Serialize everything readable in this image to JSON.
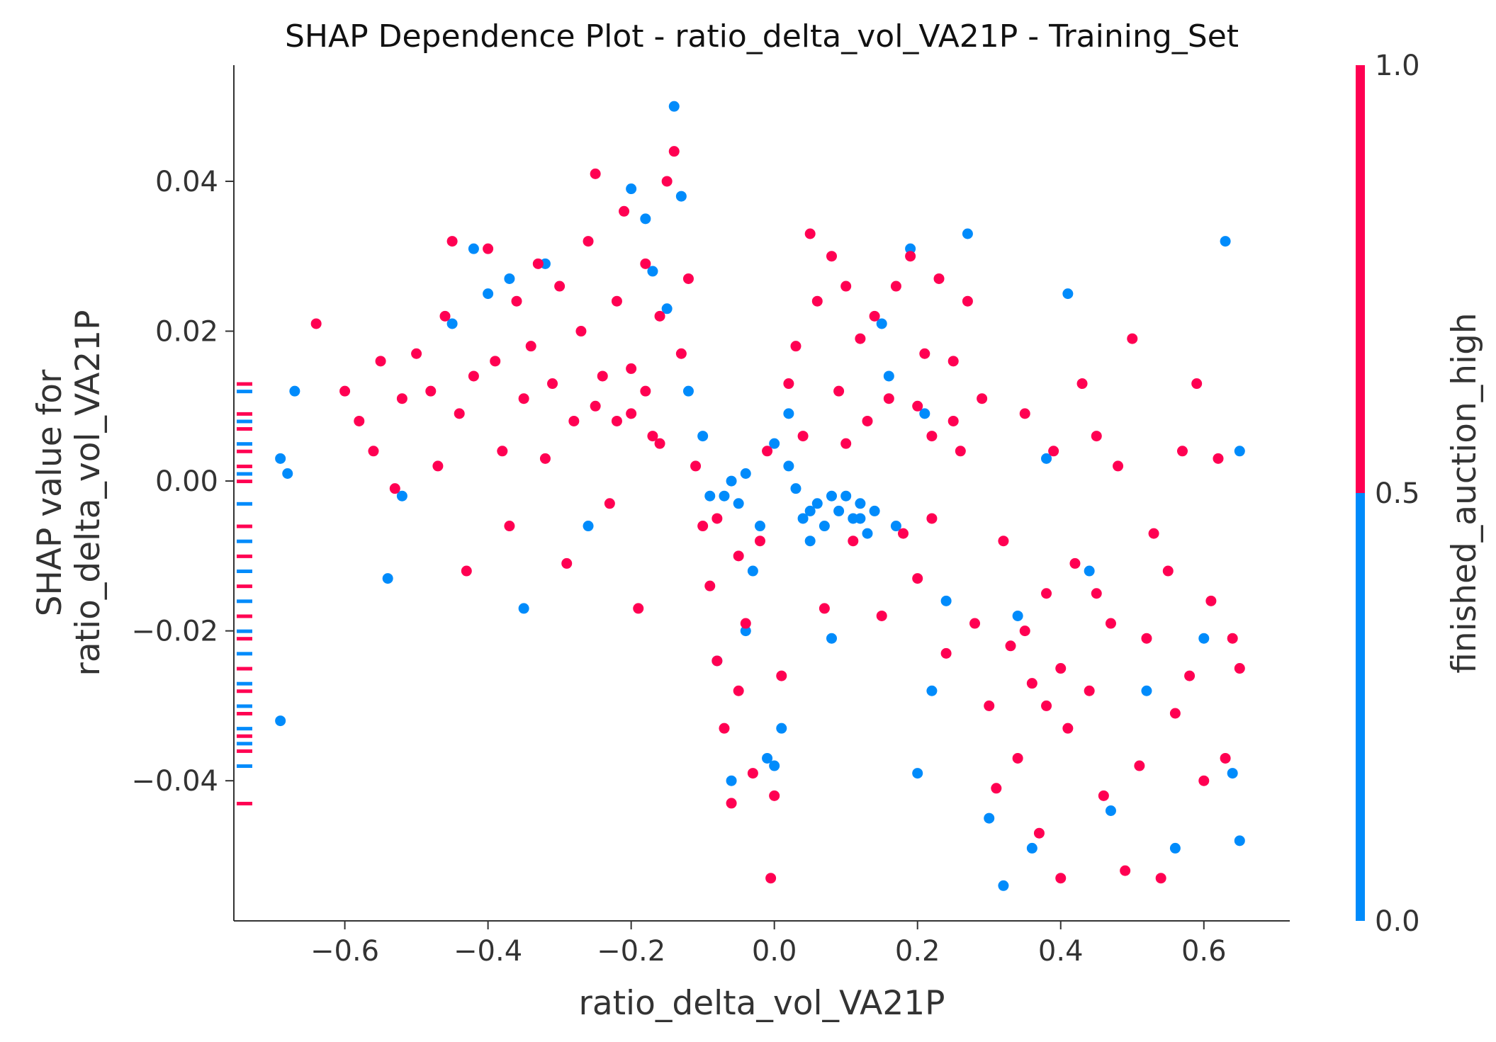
{
  "chart_data": {
    "type": "scatter",
    "title": "SHAP Dependence Plot - ratio_delta_vol_VA21P - Training_Set",
    "xlabel": "ratio_delta_vol_VA21P",
    "ylabel_lines": [
      "SHAP value for",
      "ratio_delta_vol_VA21P"
    ],
    "xlim": [
      -0.755,
      0.72
    ],
    "ylim": [
      -0.0587,
      0.0555
    ],
    "x_ticks": [
      {
        "value": -0.6,
        "label": "−0.6"
      },
      {
        "value": -0.4,
        "label": "−0.4"
      },
      {
        "value": -0.2,
        "label": "−0.2"
      },
      {
        "value": 0.0,
        "label": "0.0"
      },
      {
        "value": 0.2,
        "label": "0.2"
      },
      {
        "value": 0.4,
        "label": "0.4"
      },
      {
        "value": 0.6,
        "label": "0.6"
      }
    ],
    "y_ticks": [
      {
        "value": 0.04,
        "label": "0.04"
      },
      {
        "value": 0.02,
        "label": "0.02"
      },
      {
        "value": 0.0,
        "label": "0.00"
      },
      {
        "value": -0.02,
        "label": "−0.02"
      },
      {
        "value": -0.04,
        "label": "−0.04"
      }
    ],
    "grid": false,
    "colorbar": {
      "label": "finished_auction_high",
      "ticks": [
        {
          "value": 1.0,
          "label": "1.0"
        },
        {
          "value": 0.5,
          "label": "0.5"
        },
        {
          "value": 0.0,
          "label": "0.0"
        }
      ],
      "high_color": "#ff0052",
      "low_color": "#008bfb"
    },
    "series": [
      {
        "color_value": 1,
        "color": "#ff0052",
        "points": [
          [
            -0.64,
            0.021
          ],
          [
            -0.6,
            0.012
          ],
          [
            -0.58,
            0.008
          ],
          [
            -0.56,
            0.004
          ],
          [
            -0.55,
            0.016
          ],
          [
            -0.53,
            -0.001
          ],
          [
            -0.52,
            0.011
          ],
          [
            -0.5,
            0.017
          ],
          [
            -0.48,
            0.012
          ],
          [
            -0.47,
            0.002
          ],
          [
            -0.46,
            0.022
          ],
          [
            -0.45,
            0.032
          ],
          [
            -0.44,
            0.009
          ],
          [
            -0.43,
            -0.012
          ],
          [
            -0.42,
            0.014
          ],
          [
            -0.4,
            0.031
          ],
          [
            -0.39,
            0.016
          ],
          [
            -0.38,
            0.004
          ],
          [
            -0.37,
            -0.006
          ],
          [
            -0.36,
            0.024
          ],
          [
            -0.35,
            0.011
          ],
          [
            -0.34,
            0.018
          ],
          [
            -0.33,
            0.029
          ],
          [
            -0.32,
            0.003
          ],
          [
            -0.31,
            0.013
          ],
          [
            -0.3,
            0.026
          ],
          [
            -0.29,
            -0.011
          ],
          [
            -0.28,
            0.008
          ],
          [
            -0.27,
            0.02
          ],
          [
            -0.26,
            0.032
          ],
          [
            -0.25,
            0.041
          ],
          [
            -0.24,
            0.014
          ],
          [
            -0.23,
            -0.003
          ],
          [
            -0.22,
            0.024
          ],
          [
            -0.21,
            0.036
          ],
          [
            -0.2,
            0.009
          ],
          [
            -0.19,
            -0.017
          ],
          [
            -0.18,
            0.029
          ],
          [
            -0.17,
            0.006
          ],
          [
            -0.16,
            0.022
          ],
          [
            -0.15,
            0.04
          ],
          [
            -0.14,
            0.044
          ],
          [
            -0.13,
            0.017
          ],
          [
            -0.12,
            0.027
          ],
          [
            -0.11,
            0.002
          ],
          [
            -0.1,
            -0.006
          ],
          [
            -0.09,
            -0.014
          ],
          [
            -0.08,
            -0.024
          ],
          [
            -0.07,
            -0.033
          ],
          [
            -0.06,
            -0.043
          ],
          [
            -0.05,
            -0.028
          ],
          [
            -0.04,
            -0.019
          ],
          [
            -0.03,
            -0.039
          ],
          [
            -0.02,
            -0.008
          ],
          [
            -0.01,
            0.004
          ],
          [
            0.0,
            -0.042
          ],
          [
            0.01,
            -0.026
          ],
          [
            -0.005,
            -0.053
          ],
          [
            0.02,
            0.013
          ],
          [
            0.03,
            0.018
          ],
          [
            0.04,
            0.006
          ],
          [
            0.05,
            0.033
          ],
          [
            0.06,
            0.024
          ],
          [
            0.07,
            -0.017
          ],
          [
            0.08,
            0.03
          ],
          [
            0.09,
            0.012
          ],
          [
            0.1,
            0.026
          ],
          [
            0.11,
            -0.008
          ],
          [
            0.12,
            0.019
          ],
          [
            0.13,
            0.008
          ],
          [
            0.14,
            0.022
          ],
          [
            0.15,
            -0.018
          ],
          [
            0.16,
            0.011
          ],
          [
            0.17,
            0.026
          ],
          [
            0.18,
            -0.007
          ],
          [
            0.19,
            0.03
          ],
          [
            0.2,
            -0.013
          ],
          [
            0.21,
            0.017
          ],
          [
            0.22,
            0.006
          ],
          [
            0.23,
            0.027
          ],
          [
            0.24,
            -0.023
          ],
          [
            0.25,
            0.016
          ],
          [
            0.26,
            0.004
          ],
          [
            0.27,
            0.024
          ],
          [
            0.28,
            -0.019
          ],
          [
            0.29,
            0.011
          ],
          [
            0.3,
            -0.03
          ],
          [
            0.31,
            -0.041
          ],
          [
            0.32,
            -0.008
          ],
          [
            0.33,
            -0.022
          ],
          [
            0.34,
            -0.037
          ],
          [
            0.35,
            0.009
          ],
          [
            0.36,
            -0.027
          ],
          [
            0.37,
            -0.047
          ],
          [
            0.38,
            -0.015
          ],
          [
            0.39,
            0.004
          ],
          [
            0.4,
            -0.053
          ],
          [
            0.41,
            -0.033
          ],
          [
            0.42,
            -0.011
          ],
          [
            0.43,
            0.013
          ],
          [
            0.44,
            -0.028
          ],
          [
            0.45,
            0.006
          ],
          [
            0.46,
            -0.042
          ],
          [
            0.47,
            -0.019
          ],
          [
            0.48,
            0.002
          ],
          [
            0.49,
            -0.052
          ],
          [
            0.5,
            0.019
          ],
          [
            0.51,
            -0.038
          ],
          [
            0.52,
            -0.021
          ],
          [
            0.53,
            -0.007
          ],
          [
            0.54,
            -0.053
          ],
          [
            0.55,
            -0.012
          ],
          [
            0.56,
            -0.031
          ],
          [
            0.57,
            0.004
          ],
          [
            0.58,
            -0.026
          ],
          [
            0.59,
            0.013
          ],
          [
            0.6,
            -0.04
          ],
          [
            0.61,
            -0.016
          ],
          [
            0.62,
            0.003
          ],
          [
            0.63,
            -0.037
          ],
          [
            0.64,
            -0.021
          ],
          [
            0.65,
            -0.025
          ],
          [
            -0.2,
            0.015
          ],
          [
            -0.18,
            0.012
          ],
          [
            -0.22,
            0.008
          ],
          [
            -0.16,
            0.005
          ],
          [
            -0.25,
            0.01
          ],
          [
            0.1,
            0.005
          ],
          [
            0.2,
            0.01
          ],
          [
            0.25,
            0.008
          ],
          [
            0.22,
            -0.005
          ],
          [
            -0.05,
            -0.01
          ],
          [
            -0.08,
            -0.005
          ],
          [
            0.35,
            -0.02
          ],
          [
            0.4,
            -0.025
          ],
          [
            0.45,
            -0.015
          ],
          [
            0.38,
            -0.03
          ]
        ]
      },
      {
        "color_value": 0,
        "color": "#008bfb",
        "points": [
          [
            -0.69,
            0.003
          ],
          [
            -0.69,
            -0.032
          ],
          [
            -0.68,
            0.001
          ],
          [
            -0.67,
            0.012
          ],
          [
            -0.54,
            -0.013
          ],
          [
            -0.52,
            -0.002
          ],
          [
            -0.45,
            0.021
          ],
          [
            -0.42,
            0.031
          ],
          [
            -0.4,
            0.025
          ],
          [
            -0.37,
            0.027
          ],
          [
            -0.35,
            -0.017
          ],
          [
            -0.32,
            0.029
          ],
          [
            -0.26,
            -0.006
          ],
          [
            -0.2,
            0.039
          ],
          [
            -0.18,
            0.035
          ],
          [
            -0.17,
            0.028
          ],
          [
            -0.15,
            0.023
          ],
          [
            -0.14,
            0.05
          ],
          [
            -0.13,
            0.038
          ],
          [
            -0.12,
            0.012
          ],
          [
            -0.1,
            0.006
          ],
          [
            -0.09,
            -0.002
          ],
          [
            -0.08,
            -0.024
          ],
          [
            -0.06,
            -0.04
          ],
          [
            -0.04,
            -0.02
          ],
          [
            -0.03,
            -0.012
          ],
          [
            -0.02,
            -0.006
          ],
          [
            -0.01,
            -0.037
          ],
          [
            0.0,
            -0.038
          ],
          [
            0.01,
            -0.033
          ],
          [
            0.02,
            0.009
          ],
          [
            0.03,
            -0.001
          ],
          [
            0.04,
            -0.005
          ],
          [
            0.05,
            -0.008
          ],
          [
            0.06,
            -0.003
          ],
          [
            0.07,
            -0.006
          ],
          [
            0.08,
            -0.021
          ],
          [
            0.09,
            -0.004
          ],
          [
            0.1,
            -0.002
          ],
          [
            0.11,
            -0.005
          ],
          [
            0.12,
            -0.003
          ],
          [
            0.13,
            -0.007
          ],
          [
            0.14,
            -0.004
          ],
          [
            0.15,
            0.021
          ],
          [
            0.16,
            0.014
          ],
          [
            0.17,
            -0.006
          ],
          [
            0.19,
            0.031
          ],
          [
            0.2,
            -0.039
          ],
          [
            0.21,
            0.009
          ],
          [
            0.22,
            -0.028
          ],
          [
            0.24,
            -0.016
          ],
          [
            0.27,
            0.033
          ],
          [
            0.3,
            -0.045
          ],
          [
            0.32,
            -0.054
          ],
          [
            0.34,
            -0.018
          ],
          [
            0.36,
            -0.049
          ],
          [
            0.38,
            0.003
          ],
          [
            0.41,
            0.025
          ],
          [
            0.44,
            -0.012
          ],
          [
            0.47,
            -0.044
          ],
          [
            0.52,
            -0.028
          ],
          [
            0.56,
            -0.049
          ],
          [
            0.6,
            -0.021
          ],
          [
            0.63,
            0.032
          ],
          [
            0.64,
            -0.039
          ],
          [
            0.65,
            0.004
          ],
          [
            0.65,
            -0.048
          ],
          [
            0.05,
            -0.004
          ],
          [
            0.08,
            -0.002
          ],
          [
            0.12,
            -0.005
          ],
          [
            -0.06,
            0.0
          ],
          [
            -0.05,
            -0.003
          ],
          [
            -0.04,
            0.001
          ],
          [
            -0.07,
            -0.002
          ],
          [
            0.0,
            0.005
          ],
          [
            0.02,
            0.002
          ]
        ]
      }
    ],
    "marginal_rug": {
      "red_y": [
        0.013,
        0.009,
        0.007,
        0.004,
        0.002,
        0.0,
        -0.006,
        -0.01,
        -0.014,
        -0.018,
        -0.021,
        -0.025,
        -0.028,
        -0.031,
        -0.034,
        -0.036,
        -0.043
      ],
      "blue_y": [
        0.012,
        0.008,
        0.005,
        0.001,
        -0.003,
        -0.008,
        -0.012,
        -0.016,
        -0.02,
        -0.023,
        -0.027,
        -0.03,
        -0.033,
        -0.035,
        -0.038
      ]
    }
  }
}
